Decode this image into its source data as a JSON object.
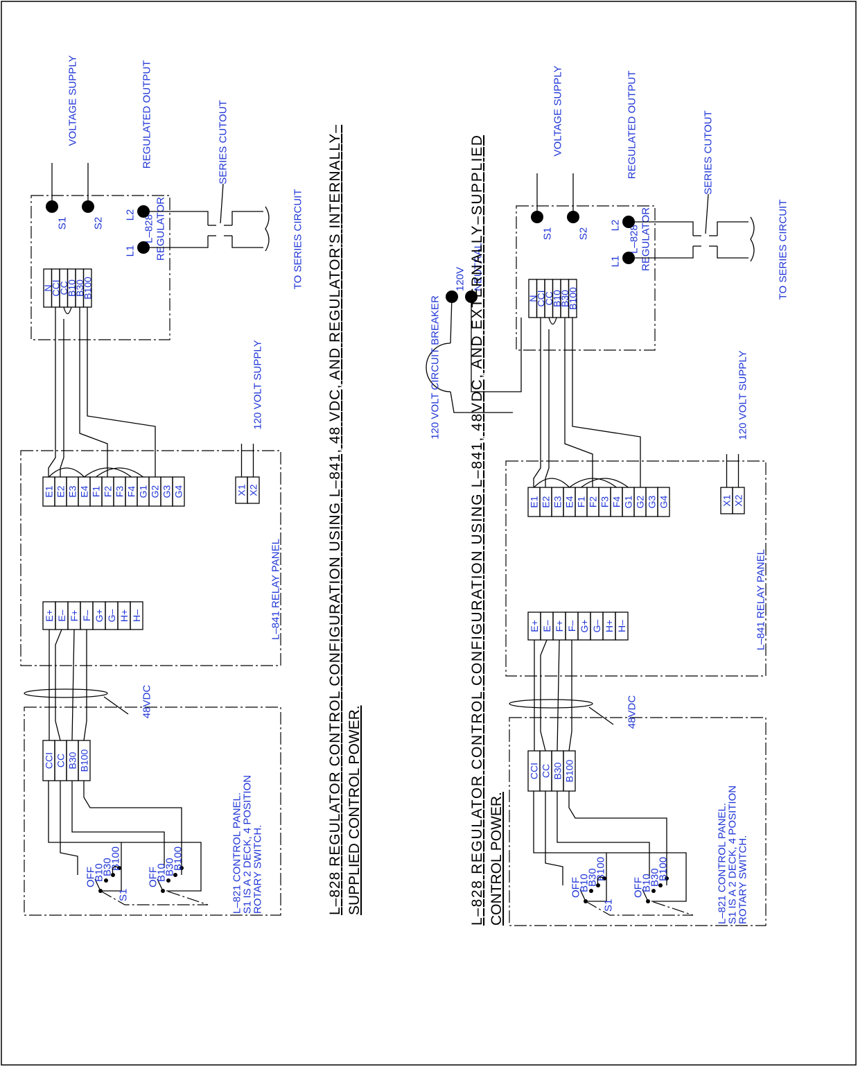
{
  "diagrams": [
    {
      "title_lines": [
        "L–828 REGULATOR CONTROL CONFIGURATION USING L–841, 48 VDC, AND REGULATOR'S INTERNALLY–",
        "SUPPLIED CONTROL POWER."
      ],
      "voltage_supply": "VOLTAGE SUPPLY",
      "regulated_output": "REGULATED OUTPUT",
      "series_cutout": "SERIES CUTOUT",
      "to_series_circuit": "TO SERIES CIRCUIT",
      "s1": "S1",
      "s2": "S2",
      "l1": "L1",
      "l2": "L2",
      "regulator_label": [
        "L–828",
        "REGULATOR"
      ],
      "regulator_terminals": [
        "N",
        "CCI",
        "CC",
        "B10",
        "B30",
        "B100"
      ],
      "relay_terminals": [
        "E1",
        "E2",
        "E3",
        "E4",
        "F1",
        "F2",
        "F3",
        "F4",
        "G1",
        "G2",
        "G3",
        "G4"
      ],
      "supply_terminals": [
        "X1",
        "X2"
      ],
      "supply_label": "120 VOLT SUPPLY",
      "relay_label": "L–841 RELAY PANEL",
      "dc_terminals": [
        "E+",
        "E–",
        "F+",
        "F–",
        "G+",
        "G–",
        "H+",
        "H–"
      ],
      "vdc_label": "48VDC",
      "control_terminals": [
        "CCI",
        "CC",
        "B30",
        "B100"
      ],
      "control_notes": [
        "L–821 CONTROL PANEL.",
        "S1 IS A 2 DECK, 4 POSITION",
        "ROTARY SWITCH."
      ],
      "switch_positions": [
        [
          "OFF",
          "B10",
          "B30",
          "B100"
        ],
        [
          "OFF",
          "B10",
          "B30",
          "B100"
        ]
      ],
      "switch_name": "S1"
    },
    {
      "title_lines": [
        "L–828 REGULATOR CONTROL CONFIGURATION USING L–841, 48VDC, AND EXTERNALLY–SUPPLIED",
        "CONTROL POWER."
      ],
      "voltage_supply": "VOLTAGE SUPPLY",
      "regulated_output": "REGULATED OUTPUT",
      "series_cutout": "SERIES CUTOUT",
      "to_series_circuit": "TO SERIES CIRCUIT",
      "s1": "S1",
      "s2": "S2",
      "l1": "L1",
      "l2": "L2",
      "regulator_label": [
        "L–828",
        "REGULATOR"
      ],
      "regulator_terminals": [
        "N",
        "CCI",
        "CC",
        "B10",
        "B30",
        "B100"
      ],
      "relay_terminals": [
        "E1",
        "E2",
        "E3",
        "E4",
        "F1",
        "F2",
        "F3",
        "F4",
        "G1",
        "G2",
        "G3",
        "G4"
      ],
      "supply_terminals": [
        "X1",
        "X2"
      ],
      "supply_label": "120 VOLT SUPPLY",
      "relay_label": "L–841 RELAY PANEL",
      "dc_terminals": [
        "E+",
        "E–",
        "F+",
        "F–",
        "G+",
        "G–",
        "H+",
        "H–"
      ],
      "vdc_label": "48VDC",
      "control_terminals": [
        "CCI",
        "CC",
        "B30",
        "B100"
      ],
      "control_notes": [
        "L–821 CONTROL PANEL.",
        "S1 IS A 2 DECK, 4 POSITION",
        "ROTARY SWITCH."
      ],
      "switch_positions": [
        [
          "OFF",
          "B10",
          "B30",
          "B100"
        ],
        [
          "OFF",
          "B10",
          "B30",
          "B100"
        ]
      ],
      "switch_name": "S1",
      "breaker_label": "120 VOLT CIRCUIT BREAKER",
      "hot_label": "120V",
      "neutral_label": "NEUTRAL"
    }
  ]
}
